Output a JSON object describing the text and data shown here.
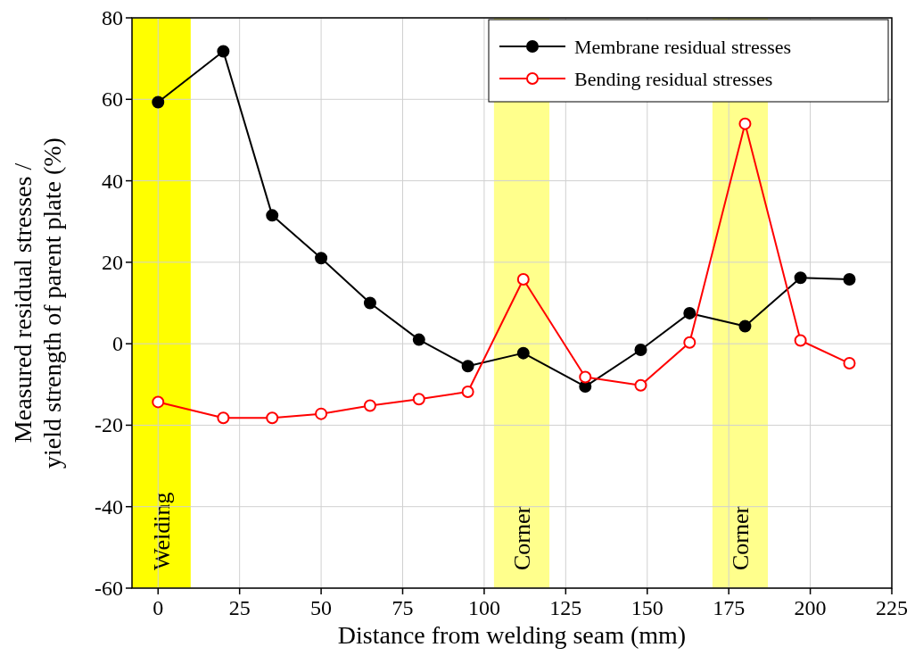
{
  "chart_data": {
    "type": "line",
    "xlabel": "Distance from welding seam (mm)",
    "ylabel": "Measured residual stresses /\nyield strength of parent plate (%)",
    "xlim": [
      -8,
      225
    ],
    "xticks": [
      0,
      25,
      50,
      75,
      100,
      125,
      150,
      175,
      200,
      225
    ],
    "ylim": [
      -60,
      80
    ],
    "yticks": [
      -60,
      -40,
      -20,
      0,
      20,
      40,
      60,
      80
    ],
    "grid": true,
    "legend": "top right",
    "marker": "circle",
    "line_style": "solid",
    "bands": [
      {
        "axis": "x",
        "from": -8,
        "to": 10,
        "label": "Welding",
        "color": "#ffff00"
      },
      {
        "axis": "x",
        "from": 103,
        "to": 120,
        "label": "Corner",
        "color": "#ffff8c"
      },
      {
        "axis": "x",
        "from": 170,
        "to": 187,
        "label": "Corner",
        "color": "#ffff8c"
      }
    ],
    "x": [
      0,
      20,
      35,
      50,
      65,
      80,
      95,
      112,
      131,
      148,
      163,
      180,
      197,
      212
    ],
    "series": [
      {
        "name": "Membrane residual stresses",
        "color": "#000000",
        "values": [
          59.3,
          71.8,
          31.5,
          21,
          10,
          1,
          -5.5,
          -2.3,
          -10.5,
          -1.5,
          7.5,
          4.3,
          16.2,
          15.8
        ]
      },
      {
        "name": "Bending residual stresses",
        "color": "#ff0000",
        "values": [
          -14.3,
          -18.2,
          -18.2,
          -17.2,
          -15.2,
          -13.6,
          -11.8,
          15.8,
          -8.2,
          -10.2,
          0.3,
          54,
          0.8,
          -4.8
        ]
      }
    ]
  }
}
